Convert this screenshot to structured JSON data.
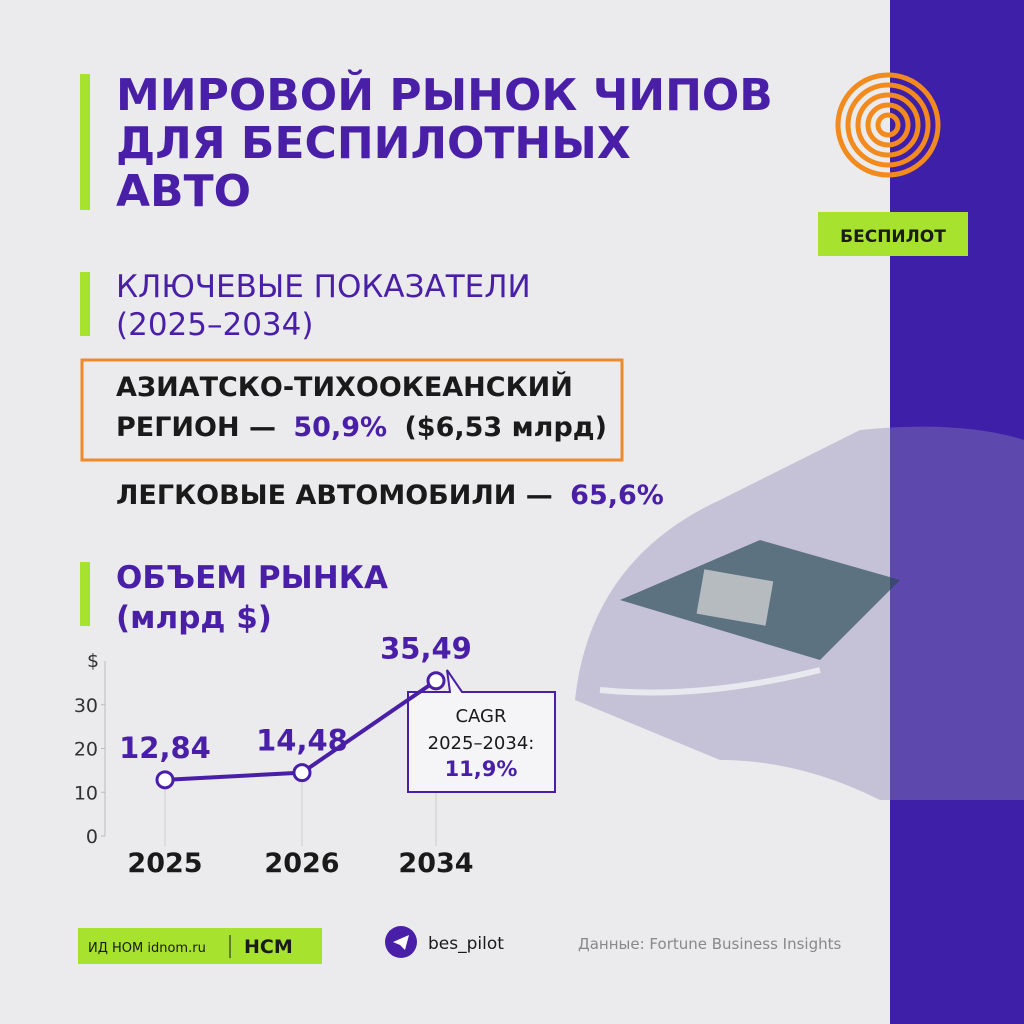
{
  "header": {
    "title": [
      "МИРОВОЙ РЫНОК ЧИПОВ",
      "ДЛЯ БЕСПИЛОТНЫХ",
      "АВТО"
    ],
    "badge": "БЕСПИЛОТ"
  },
  "section": {
    "title": [
      "КЛЮЧЕВЫЕ ПОКАЗАТЕЛИ",
      "(2025–2034)"
    ]
  },
  "stats": [
    {
      "label": [
        "АЗИАТСКО-ТИХООКЕАНСКИЙ",
        "РЕГИОН —"
      ],
      "value": "50,9%",
      "detail": "($6,53 млрд)"
    },
    {
      "label": [
        "ЛЕГКОВЫЕ АВТОМОБИЛИ —"
      ],
      "value": "65,6%"
    }
  ],
  "chart_data": {
    "type": "line",
    "title": [
      "ОБЪЕМ РЫНКА",
      "(млрд $)"
    ],
    "y_label": "$",
    "categories": [
      "2025",
      "2026",
      "2034"
    ],
    "values": [
      12.84,
      14.48,
      35.49
    ],
    "value_labels": [
      "12,84",
      "14,48",
      "35,49"
    ],
    "color": "#4a1fa8",
    "ylim": [
      0,
      40
    ],
    "yticks": [
      0,
      10,
      20,
      30
    ],
    "annotation": [
      "CAGR",
      "2025–2034:",
      "11,9%"
    ]
  },
  "footer": {
    "publisher": "ИД НОМ idnom.ru",
    "brand": "НСМ",
    "channel": "bes_pilot",
    "source": "Данные: Fortune Business Insights"
  }
}
